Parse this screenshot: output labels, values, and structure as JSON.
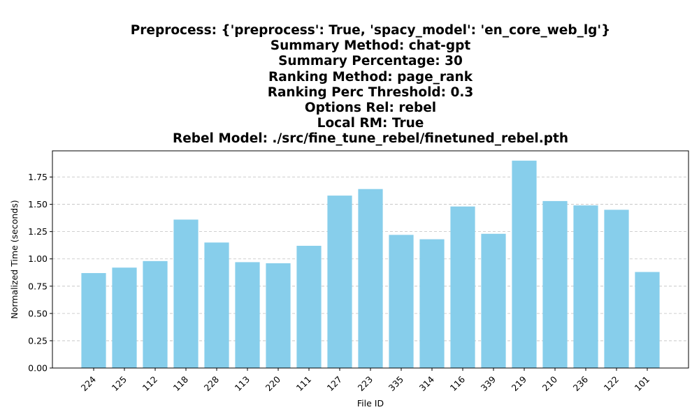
{
  "title_lines": [
    "Preprocess: {'preprocess': True, 'spacy_model': 'en_core_web_lg'}",
    "Summary Method: chat-gpt",
    "Summary Percentage: 30",
    "Ranking Method: page_rank",
    "Ranking Perc Threshold: 0.3",
    "Options Rel: rebel",
    "Local RM: True",
    "Rebel Model: ./src/fine_tune_rebel/finetuned_rebel.pth"
  ],
  "chart_data": {
    "type": "bar",
    "title": "Preprocess: {'preprocess': True, 'spacy_model': 'en_core_web_lg'}\nSummary Method: chat-gpt\nSummary Percentage: 30\nRanking Method: page_rank\nRanking Perc Threshold: 0.3\nOptions Rel: rebel\nLocal RM: True\nRebel Model: ./src/fine_tune_rebel/finetuned_rebel.pth",
    "xlabel": "File ID",
    "ylabel": "Normalized Time (seconds)",
    "categories": [
      "224",
      "125",
      "112",
      "118",
      "228",
      "113",
      "220",
      "111",
      "127",
      "223",
      "335",
      "314",
      "116",
      "339",
      "219",
      "210",
      "236",
      "122",
      "101"
    ],
    "values": [
      0.87,
      0.92,
      0.98,
      1.36,
      1.15,
      0.97,
      0.96,
      1.12,
      1.58,
      1.64,
      1.22,
      1.18,
      1.48,
      1.23,
      1.9,
      1.53,
      1.49,
      1.45,
      0.88
    ],
    "ylim": [
      0,
      1.99
    ],
    "yticks": [
      "0.00",
      "0.25",
      "0.50",
      "0.75",
      "1.00",
      "1.25",
      "1.50",
      "1.75"
    ],
    "grid": "y-dashed",
    "bar_color": "#87ceeb",
    "grid_color": "#c0c0c0"
  }
}
